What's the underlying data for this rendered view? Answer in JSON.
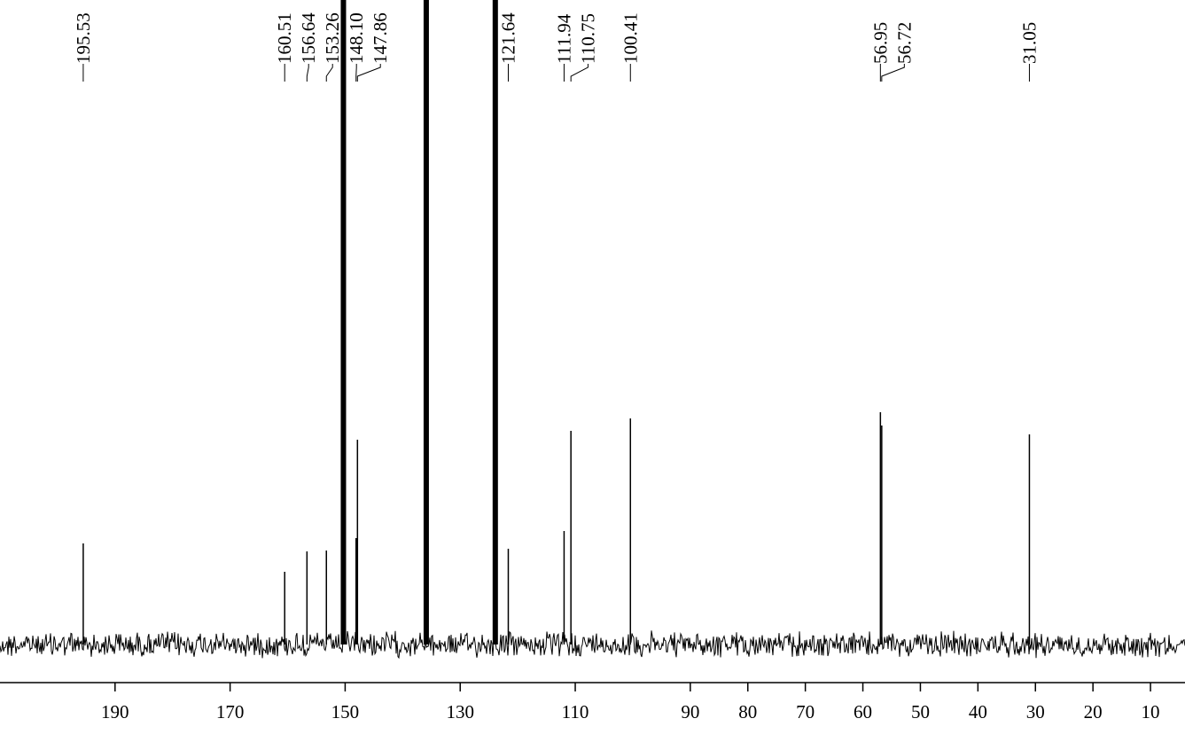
{
  "chart_data": {
    "type": "spectrum",
    "x": [
      195.53,
      160.51,
      156.64,
      153.26,
      148.1,
      147.86,
      121.64,
      111.94,
      110.75,
      100.41,
      56.95,
      56.72,
      31.05
    ],
    "x_labels": [
      "195.53",
      "160.51",
      "156.64",
      "153.26",
      "148.10",
      "147.86",
      "121.64",
      "111.94",
      "110.75",
      "100.41",
      "56.95",
      "56.72",
      "31.05"
    ],
    "values": [
      114,
      82,
      105,
      106,
      120,
      231,
      108,
      128,
      241,
      255,
      262,
      247,
      237
    ],
    "solvent_x": [
      150.3,
      135.9,
      123.9
    ],
    "solvent_values": [
      1000,
      1000,
      1000
    ],
    "color": "#000000",
    "xlim": [
      210,
      4
    ],
    "xticks": [
      190,
      170,
      150,
      130,
      110,
      90,
      80,
      70,
      60,
      50,
      40,
      30,
      20,
      10
    ],
    "ylim": [
      -33,
      727
    ]
  }
}
